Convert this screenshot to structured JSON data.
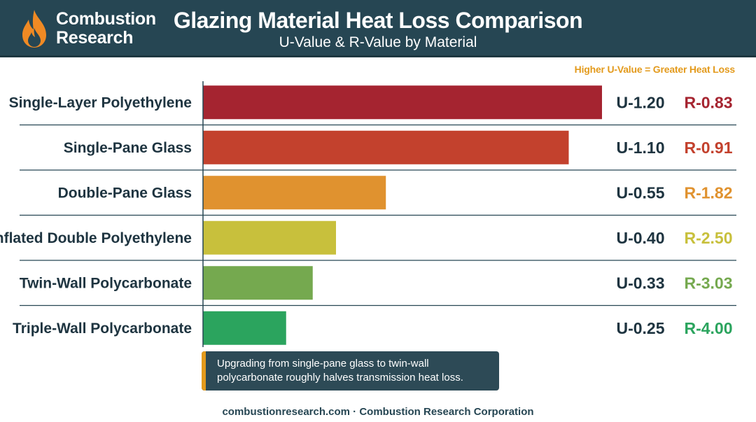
{
  "header": {
    "brand_line1": "Combustion",
    "brand_line2": "Research",
    "title": "Glazing Material Heat Loss Comparison",
    "subtitle": "U-Value & R-Value by Material",
    "logo_icon": "flame-icon"
  },
  "note": "Higher U-Value = Greater Heat Loss",
  "chart_data": {
    "type": "bar",
    "orientation": "horizontal",
    "title": "Glazing Material Heat Loss Comparison",
    "subtitle": "U-Value & R-Value by Material",
    "categories": [
      "Single-Layer Polyethylene",
      "Single-Pane Glass",
      "Double-Pane Glass",
      "Inflated Double Polyethylene",
      "Twin-Wall Polycarbonate",
      "Triple-Wall Polycarbonate"
    ],
    "u_values": [
      1.2,
      1.1,
      0.55,
      0.4,
      0.33,
      0.25
    ],
    "r_values": [
      0.83,
      0.91,
      1.82,
      2.5,
      3.03,
      4.0
    ],
    "u_labels": [
      "U-1.20",
      "U-1.10",
      "U-0.55",
      "U-0.40",
      "U-0.33",
      "U-0.25"
    ],
    "r_labels": [
      "R-0.83",
      "R-0.91",
      "R-1.82",
      "R-2.50",
      "R-3.03",
      "R-4.00"
    ],
    "colors": [
      "#a52430",
      "#c3412d",
      "#e0922f",
      "#c8c03c",
      "#75a94f",
      "#2ba45e"
    ],
    "r_label_colors": [
      "#a52430",
      "#c3412d",
      "#e0922f",
      "#c8c03c",
      "#75a94f",
      "#2ba45e"
    ],
    "xlim": [
      0,
      1.2
    ],
    "grid": false,
    "legend": "none"
  },
  "callout": {
    "text": "Upgrading from single-pane glass to twin-wall polycarbonate roughly halves transmission heat loss."
  },
  "footer": "combustionresearch.com · Combustion Research Corporation",
  "colors": {
    "header_bg": "#264653",
    "accent": "#e39a1c",
    "text_dark": "#264653"
  }
}
